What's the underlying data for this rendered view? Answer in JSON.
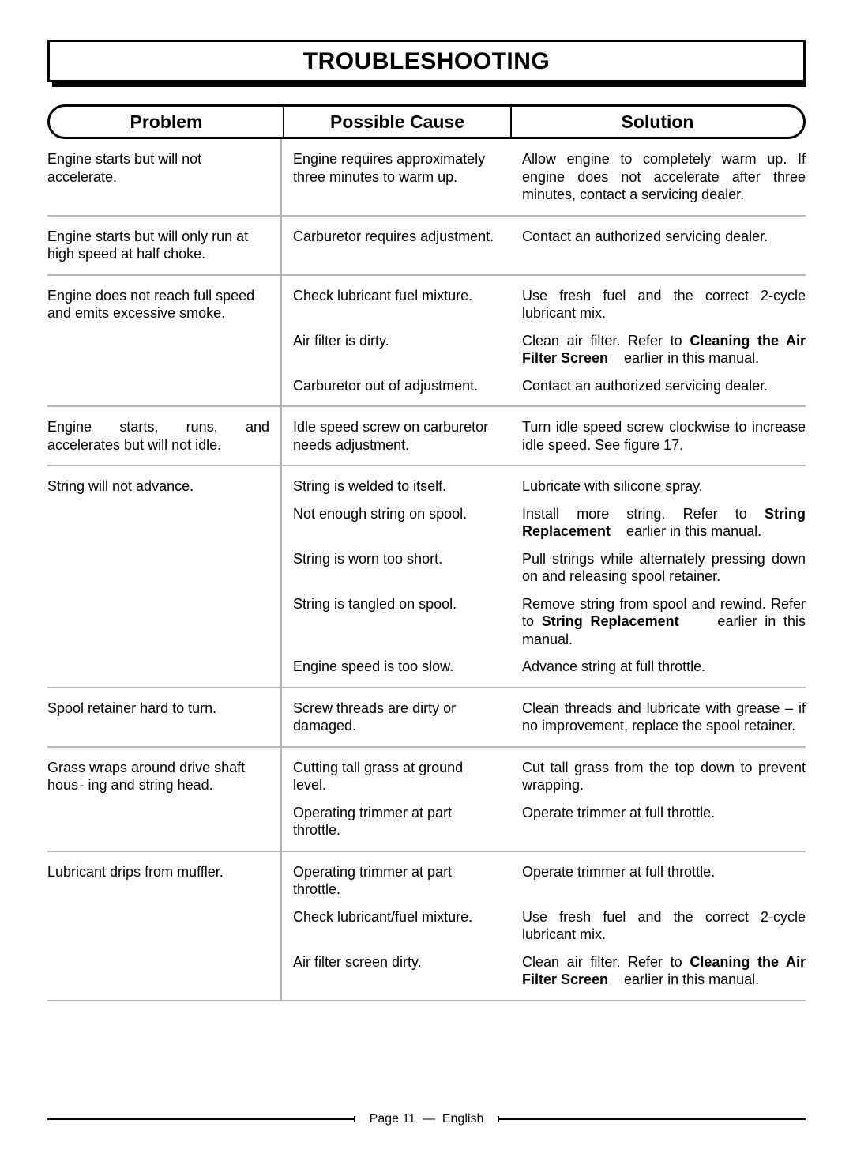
{
  "title": "TROUBLESHOOTING",
  "headers": {
    "problem": "Problem",
    "cause": "Possible Cause",
    "solution": "Solution"
  },
  "rows": [
    {
      "problem": "Engine starts but will not accelerate.",
      "items": [
        {
          "cause": "Engine requires approximately three minutes to warm up.",
          "solution": "Allow engine to completely warm up. If engine does not accelerate after three minutes, contact a servicing dealer."
        }
      ]
    },
    {
      "problem": "Engine starts but will only run at high speed at half choke.",
      "items": [
        {
          "cause": "Carburetor requires adjustment.",
          "solution": "Contact an authorized servicing dealer.",
          "solution_justify": true
        }
      ]
    },
    {
      "problem": "Engine does not reach full speed and emits excessive smoke.",
      "items": [
        {
          "cause": "Check lubricant fuel mixture.",
          "solution": "Use fresh fuel and the correct 2-cycle lubricant mix."
        },
        {
          "cause": "Air filter is dirty.",
          "solution_html": "Clean air filter. Refer to <b>Cleaning the Air Filter Screen</b>&nbsp;&nbsp;&nbsp; earlier in this manual."
        },
        {
          "cause": "Carburetor out of adjustment.",
          "solution": "Contact an authorized servicing dealer.",
          "solution_justify": true
        }
      ]
    },
    {
      "problem": "Engine starts, runs, and accelerates but will not idle.",
      "problem_justify": true,
      "items": [
        {
          "cause": "Idle speed screw on carburetor needs adjustment.",
          "solution_html": "Turn idle speed screw clockwise to increase idle speed. <span style='font-family:Arial'>See figure 17.</span>"
        }
      ]
    },
    {
      "problem": "String will not advance.",
      "items": [
        {
          "cause": "String is welded to itself.",
          "solution": "Lubricate with silicone spray."
        },
        {
          "cause": "Not enough string on spool.",
          "solution_html": "Install more string. Refer to <b>String Replacement</b>&nbsp;&nbsp;&nbsp; earlier in this manual."
        },
        {
          "cause": "String is worn too short.",
          "solution": "Pull strings while alternately pressing down on and releasing spool retainer."
        },
        {
          "cause": "String is tangled on spool.",
          "solution_html": "Remove string from spool and rewind. Refer to <b>String Replacement</b>&nbsp;&nbsp;&nbsp;&nbsp; earlier in this manual."
        },
        {
          "cause": "Engine speed is too slow.",
          "solution": "Advance string at full throttle."
        }
      ]
    },
    {
      "problem": "Spool retainer hard to turn.",
      "items": [
        {
          "cause": "Screw threads are dirty or damaged.",
          "solution": "Clean threads and lubricate with grease – if no improvement, replace the spool retainer.",
          "solution_justify": true
        }
      ]
    },
    {
      "problem": "Grass wraps around drive shaft hous - ing and string head.",
      "items": [
        {
          "cause": "Cutting tall grass at ground level.",
          "solution": "Cut tall grass from the top down to prevent wrapping."
        },
        {
          "cause": "Operating trimmer at part throttle.",
          "solution": "Operate trimmer at full throttle."
        }
      ]
    },
    {
      "problem": "Lubricant drips from muffler.",
      "items": [
        {
          "cause": "Operating trimmer at part throttle.",
          "solution": "Operate trimmer at full throttle."
        },
        {
          "cause": "Check lubricant/fuel mixture.",
          "solution": "Use fresh fuel and the correct 2-cycle lubricant mix."
        },
        {
          "cause": "Air filter screen dirty.",
          "solution_html": "Clean air filter. Refer to <b>Cleaning the Air Filter Screen</b>&nbsp;&nbsp;&nbsp; earlier in this manual."
        }
      ]
    }
  ],
  "footer": {
    "page_label": "Page 11",
    "separator": "—",
    "lang": "English"
  }
}
